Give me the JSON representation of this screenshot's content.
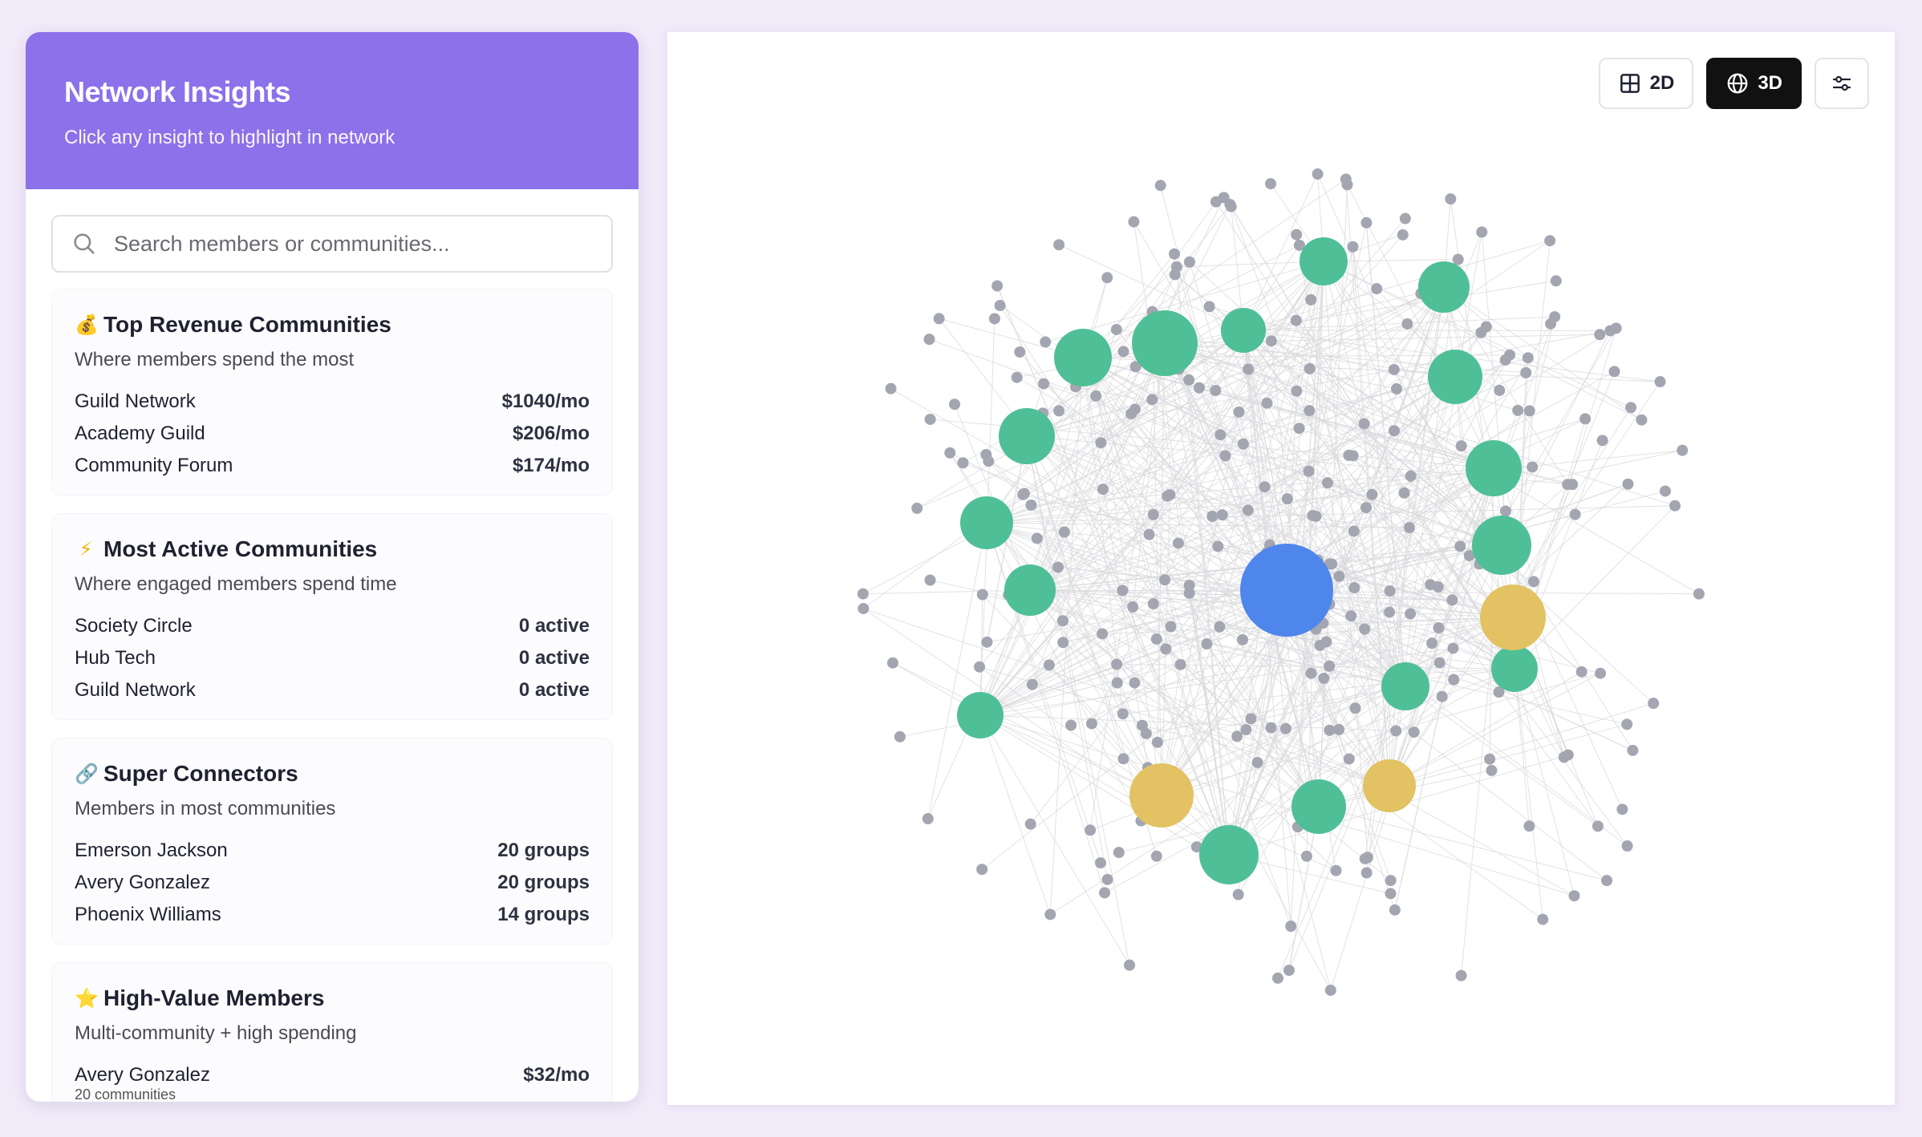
{
  "sidebar": {
    "title": "Network Insights",
    "subtitle": "Click any insight to highlight in network",
    "search_placeholder": "Search members or communities...",
    "cards": [
      {
        "icon": "money-bag-icon",
        "emoji": "💰",
        "title": "Top Revenue Communities",
        "subtitle": "Where members spend the most",
        "rows": [
          {
            "name": "Guild Network",
            "value": "$1040/mo"
          },
          {
            "name": "Academy Guild",
            "value": "$206/mo"
          },
          {
            "name": "Community Forum",
            "value": "$174/mo"
          }
        ]
      },
      {
        "icon": "lightning-icon",
        "emoji": "⚡",
        "title": "Most Active Communities",
        "subtitle": "Where engaged members spend time",
        "rows": [
          {
            "name": "Society Circle",
            "value": "0 active"
          },
          {
            "name": "Hub Tech",
            "value": "0 active"
          },
          {
            "name": "Guild Network",
            "value": "0 active"
          }
        ]
      },
      {
        "icon": "link-icon",
        "emoji": "🔗",
        "title": "Super Connectors",
        "subtitle": "Members in most communities",
        "rows": [
          {
            "name": "Emerson Jackson",
            "value": "20 groups"
          },
          {
            "name": "Avery Gonzalez",
            "value": "20 groups"
          },
          {
            "name": "Phoenix Williams",
            "value": "14 groups"
          }
        ]
      },
      {
        "icon": "star-icon",
        "emoji": "⭐",
        "title": "High-Value Members",
        "subtitle": "Multi-community + high spending",
        "rows": [
          {
            "name": "Avery Gonzalez",
            "value": "$32/mo",
            "detail": "20 communities"
          }
        ]
      }
    ]
  },
  "toolbar": {
    "view_2d_label": "2D",
    "view_3d_label": "3D",
    "active_view": "3D"
  },
  "colors": {
    "header": "#8b71ea",
    "community_node": "#4fbf97",
    "member_node": "#a3a6b0",
    "highlight_node": "#e2c262",
    "center_node": "#4f86ec",
    "edge": "#d9d9dd"
  }
}
